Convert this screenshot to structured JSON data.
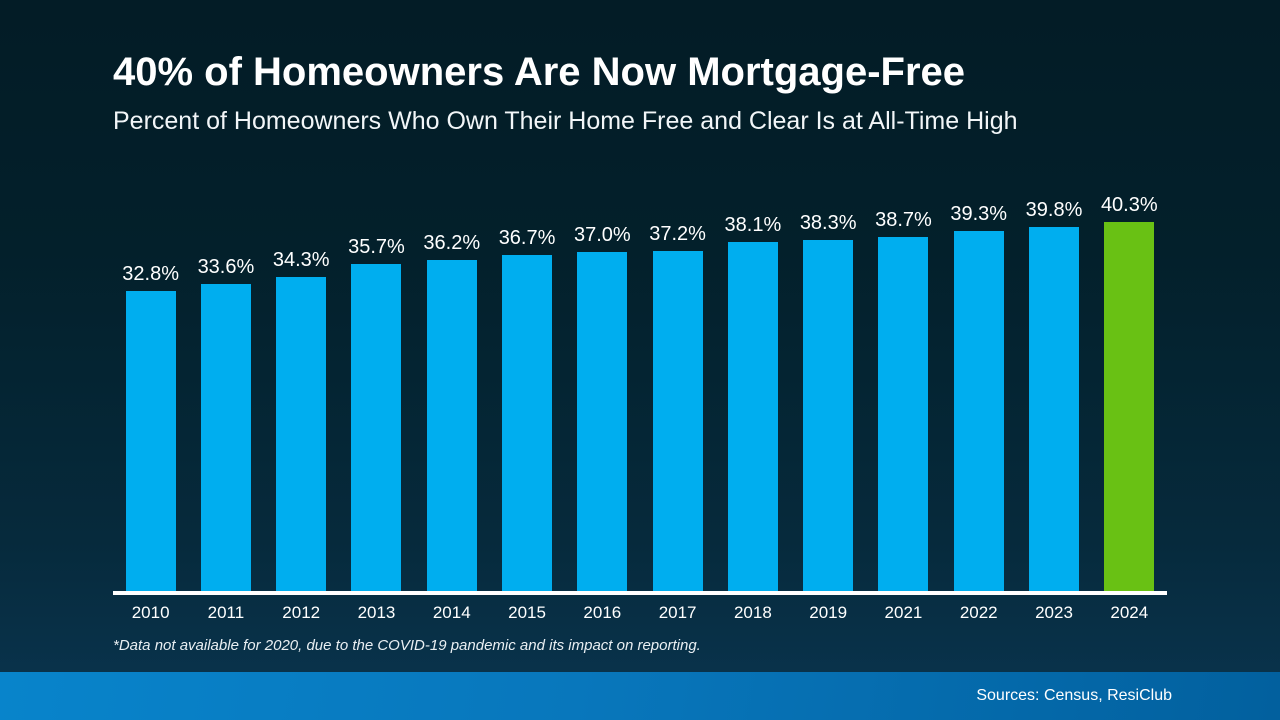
{
  "title": "40% of Homeowners Are Now Mortgage-Free",
  "subtitle": "Percent of Homeowners Who Own Their Home Free and Clear Is at All-Time High",
  "footnote": "*Data not available for 2020, due to the COVID-19 pandemic and its impact on reporting.",
  "sources": "Sources: Census, ResiClub",
  "colors": {
    "bar_blue": "#00aeef",
    "bar_green": "#69c114",
    "background_top": "#031c26",
    "background_bottom": "#0a3550",
    "band_left": "#0884cb",
    "band_right": "#02609e",
    "axis": "#ffffff",
    "text": "#ffffff"
  },
  "chart_data": {
    "type": "bar",
    "categories": [
      "2010",
      "2011",
      "2012",
      "2013",
      "2014",
      "2015",
      "2016",
      "2017",
      "2018",
      "2019",
      "2021",
      "2022",
      "2023",
      "2024"
    ],
    "values": [
      32.8,
      33.6,
      34.3,
      35.7,
      36.2,
      36.7,
      37.0,
      37.2,
      38.1,
      38.3,
      38.7,
      39.3,
      39.8,
      40.3
    ],
    "labels": [
      "32.8%",
      "33.6%",
      "34.3%",
      "35.7%",
      "36.2%",
      "36.7%",
      "37.0%",
      "37.2%",
      "38.1%",
      "38.3%",
      "38.7%",
      "39.3%",
      "39.8%",
      "40.3%"
    ],
    "highlight_index": 13,
    "title": "40% of Homeowners Are Now Mortgage-Free",
    "subtitle": "Percent of Homeowners Who Own Their Home Free and Clear Is at All-Time High",
    "xlabel": "",
    "ylabel": "",
    "ylim": [
      0,
      40.3
    ],
    "grid": false,
    "legend": null,
    "data_labels": true,
    "bar_color": "#00aeef",
    "highlight_color": "#69c114"
  }
}
